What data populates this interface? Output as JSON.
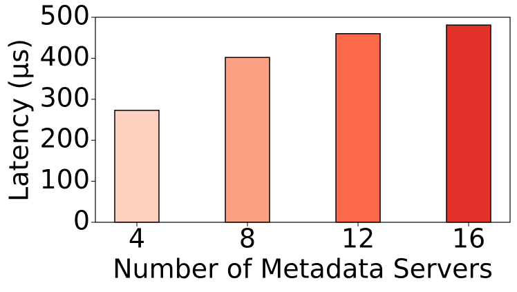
{
  "chart_data": {
    "type": "bar",
    "xlabel": "Number of Metadata Servers",
    "ylabel": "Latency (µs)",
    "categories": [
      "4",
      "8",
      "12",
      "16"
    ],
    "values": [
      273,
      402,
      460,
      481
    ],
    "colors": [
      "#fdd0c0",
      "#fca183",
      "#fb6a4a",
      "#e33229"
    ],
    "ylim": [
      0,
      500
    ],
    "yticks": [
      0,
      100,
      200,
      300,
      400,
      500
    ]
  }
}
